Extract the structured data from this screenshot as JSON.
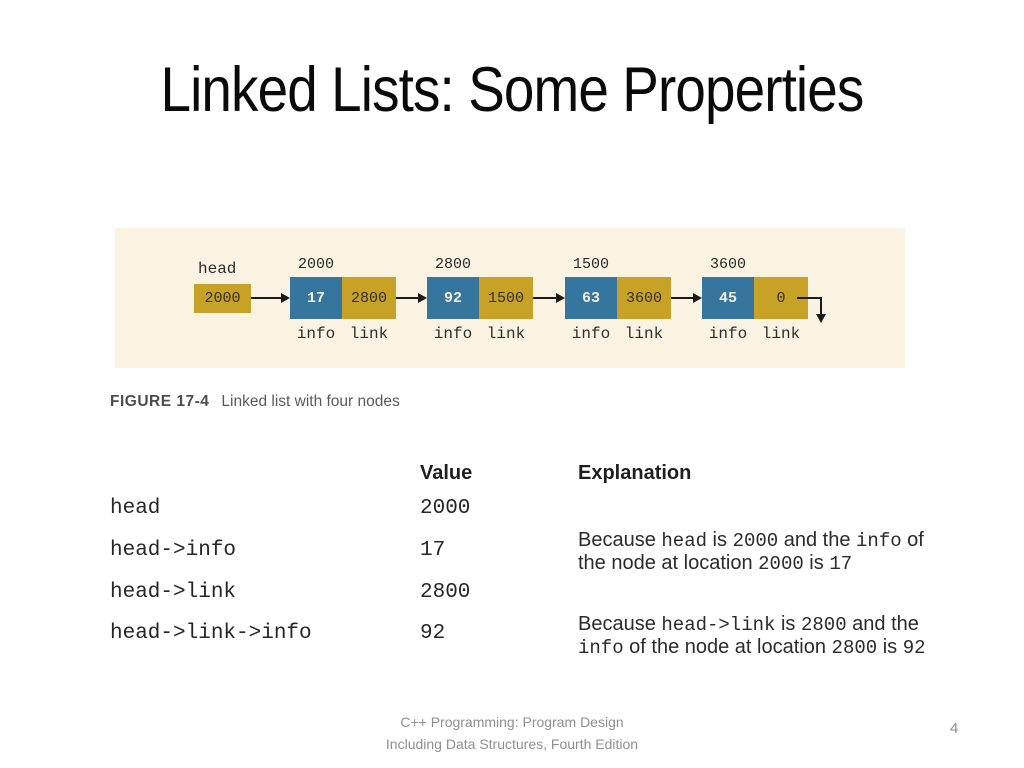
{
  "slide": {
    "title": "Linked Lists: Some Properties",
    "page_number": "4",
    "footer_line1": "C++ Programming: Program Design",
    "footer_line2": "Including Data Structures, Fourth Edition"
  },
  "figure": {
    "caption_label": "FIGURE 17-4",
    "caption_text": "Linked list with four nodes",
    "head_label": "head",
    "head_value": "2000",
    "info_label": "info",
    "link_label": "link",
    "nodes": [
      {
        "address": "2000",
        "info": "17",
        "link": "2800"
      },
      {
        "address": "2800",
        "info": "92",
        "link": "1500"
      },
      {
        "address": "1500",
        "info": "63",
        "link": "3600"
      },
      {
        "address": "3600",
        "info": "45",
        "link": "0"
      }
    ],
    "colors": {
      "panel_bg": "#FAF3E1",
      "info_box_blue": "#35759E",
      "link_box_gold": "#C8A227",
      "arrow": "#1A1A1A"
    }
  },
  "table": {
    "value_header": "Value",
    "explanation_header": "Explanation",
    "rows": [
      {
        "expr": "head",
        "value": "2000"
      },
      {
        "expr": "head->info",
        "value": "17"
      },
      {
        "expr": "head->link",
        "value": "2800"
      },
      {
        "expr": "head->link->info",
        "value": "92"
      }
    ],
    "explanations": [
      {
        "l1": [
          "Because ",
          "head",
          " is ",
          "2000",
          " and the ",
          "info",
          " of"
        ],
        "l2": [
          "the node at location ",
          "2000",
          " is ",
          "17"
        ]
      },
      {
        "l1": [
          "Because ",
          "head->link",
          " is ",
          "2800",
          " and the"
        ],
        "l2": [
          "info",
          " of the node at location ",
          "2800",
          " is ",
          "92"
        ]
      }
    ]
  }
}
